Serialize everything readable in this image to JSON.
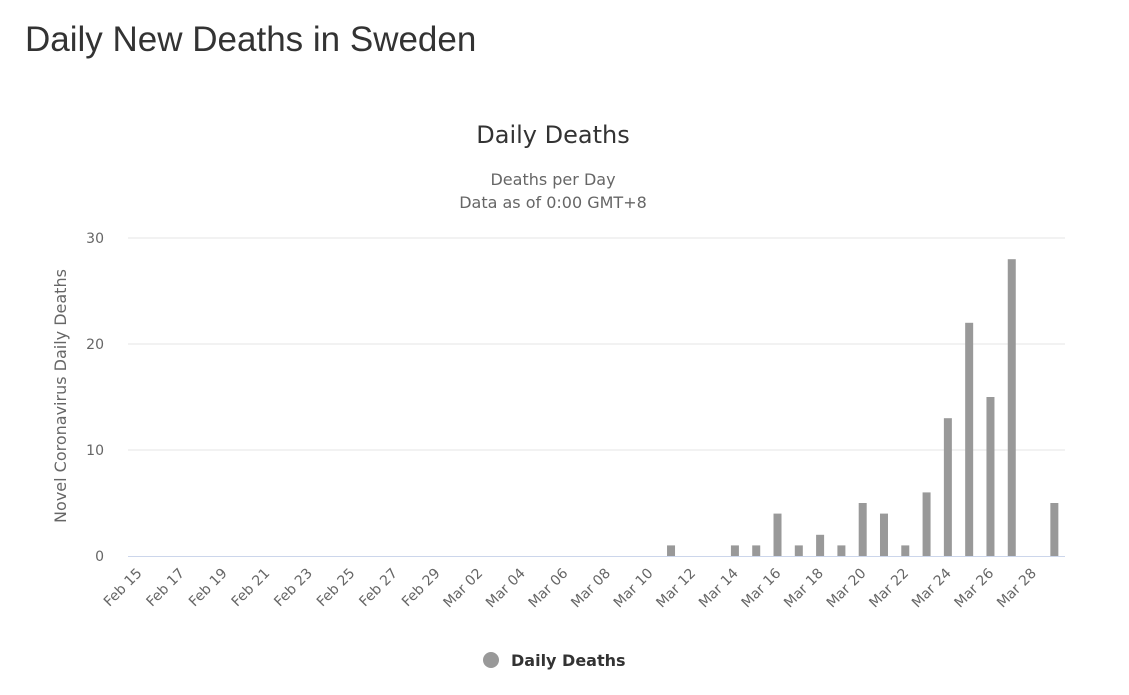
{
  "page": {
    "title": "Daily New Deaths in Sweden"
  },
  "colors": {
    "bar": "#999999",
    "grid": "#e6e6e6",
    "axis": "#ccd6eb"
  },
  "chart_data": {
    "type": "bar",
    "title": "Daily Deaths",
    "subtitle_lines": [
      "Deaths per Day",
      "Data as of 0:00 GMT+8"
    ],
    "xlabel": "",
    "ylabel": "Novel Coronavirus Daily Deaths",
    "ylim": [
      0,
      30
    ],
    "yticks": [
      0,
      10,
      20,
      30
    ],
    "grid": true,
    "legend_position": "bottom-center",
    "categories": [
      "Feb 15",
      "Feb 16",
      "Feb 17",
      "Feb 18",
      "Feb 19",
      "Feb 20",
      "Feb 21",
      "Feb 22",
      "Feb 23",
      "Feb 24",
      "Feb 25",
      "Feb 26",
      "Feb 27",
      "Feb 28",
      "Feb 29",
      "Mar 01",
      "Mar 02",
      "Mar 03",
      "Mar 04",
      "Mar 05",
      "Mar 06",
      "Mar 07",
      "Mar 08",
      "Mar 09",
      "Mar 10",
      "Mar 11",
      "Mar 12",
      "Mar 13",
      "Mar 14",
      "Mar 15",
      "Mar 16",
      "Mar 17",
      "Mar 18",
      "Mar 19",
      "Mar 20",
      "Mar 21",
      "Mar 22",
      "Mar 23",
      "Mar 24",
      "Mar 25",
      "Mar 26",
      "Mar 27",
      "Mar 28",
      "Mar 29"
    ],
    "x_tick_labels": [
      "Feb 15",
      "Feb 17",
      "Feb 19",
      "Feb 21",
      "Feb 23",
      "Feb 25",
      "Feb 27",
      "Feb 29",
      "Mar 02",
      "Mar 04",
      "Mar 06",
      "Mar 08",
      "Mar 10",
      "Mar 12",
      "Mar 14",
      "Mar 16",
      "Mar 18",
      "Mar 20",
      "Mar 22",
      "Mar 24",
      "Mar 26",
      "Mar 28"
    ],
    "series": [
      {
        "name": "Daily Deaths",
        "color": "#999999",
        "values": [
          0,
          0,
          0,
          0,
          0,
          0,
          0,
          0,
          0,
          0,
          0,
          0,
          0,
          0,
          0,
          0,
          0,
          0,
          0,
          0,
          0,
          0,
          0,
          0,
          0,
          1,
          0,
          0,
          1,
          1,
          4,
          1,
          2,
          1,
          5,
          4,
          1,
          6,
          13,
          22,
          15,
          28,
          0,
          5
        ]
      }
    ]
  }
}
